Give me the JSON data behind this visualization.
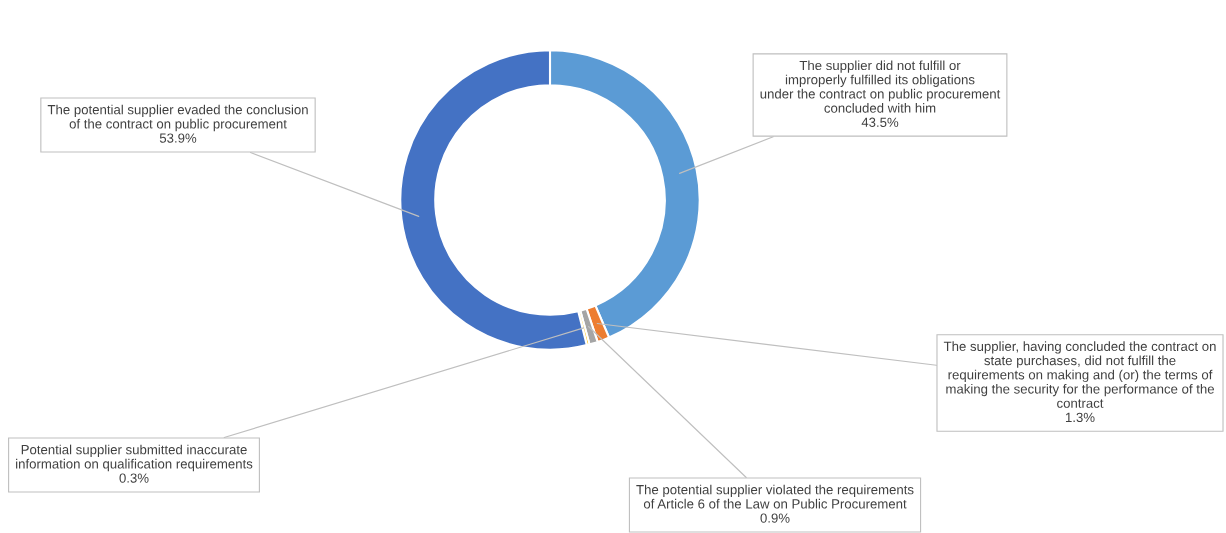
{
  "chart_data": {
    "type": "donut",
    "categories": [
      "The supplier did not fulfill or improperly fulfilled its obligations under the contract on public procurement concluded with him",
      "The supplier, having concluded the contract on state purchases, did not fulfill the requirements on making and (or) the terms of making the security for the performance of the contract",
      "The potential supplier violated the requirements of Article 6 of the Law on Public Procurement",
      "Potential supplier submitted inaccurate information on qualification requirements",
      "The potential supplier evaded the conclusion of the contract on public procurement"
    ],
    "values": [
      43.5,
      1.3,
      0.9,
      0.3,
      53.9
    ],
    "colors": [
      "#5b9bd5",
      "#ed7d31",
      "#a5a5a5",
      "#ffc000",
      "#4472c4"
    ],
    "value_labels": [
      "43.5%",
      "1.3%",
      "0.9%",
      "0.3%",
      "53.9%"
    ]
  }
}
